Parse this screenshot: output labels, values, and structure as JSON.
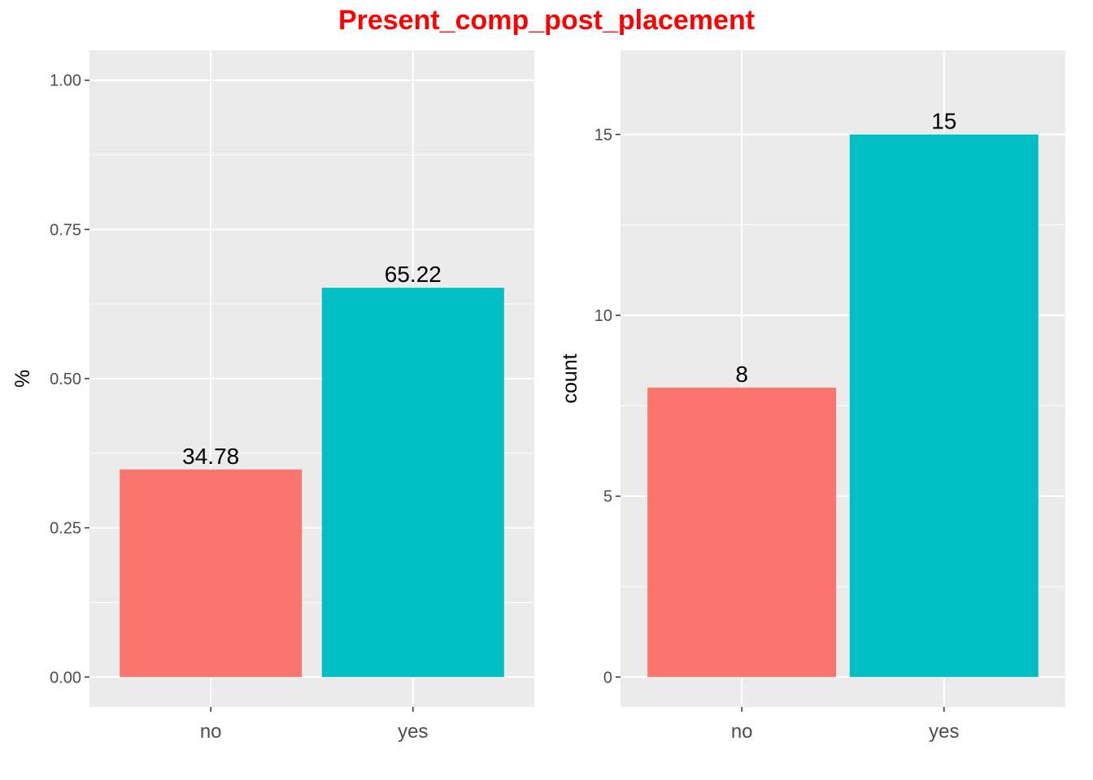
{
  "title": "Present_comp_post_placement",
  "colors": {
    "title": "#ff0000",
    "panel_bg": "#ebebeb",
    "grid": "#ffffff",
    "no": "#f8766d",
    "yes": "#00bfc4"
  },
  "chart_data": [
    {
      "type": "bar",
      "categories": [
        "no",
        "yes"
      ],
      "values": [
        0.3478,
        0.6522
      ],
      "bar_labels": [
        "34.78",
        "65.22"
      ],
      "xlabel": "",
      "ylabel": "%",
      "ylim": [
        -0.05,
        1.05
      ],
      "yticks": [
        0,
        0.25,
        0.5,
        0.75,
        1.0
      ],
      "ytick_labels": [
        "0.00",
        "0.25",
        "0.50",
        "0.75",
        "1.00"
      ],
      "grid": true,
      "legend": "none"
    },
    {
      "type": "bar",
      "categories": [
        "no",
        "yes"
      ],
      "values": [
        8,
        15
      ],
      "bar_labels": [
        "8",
        "15"
      ],
      "xlabel": "",
      "ylabel": "count",
      "ylim": [
        -0.825,
        17.325
      ],
      "yticks": [
        0,
        5,
        10,
        15
      ],
      "ytick_labels": [
        "0",
        "5",
        "10",
        "15"
      ],
      "grid": true,
      "legend": "none"
    }
  ]
}
